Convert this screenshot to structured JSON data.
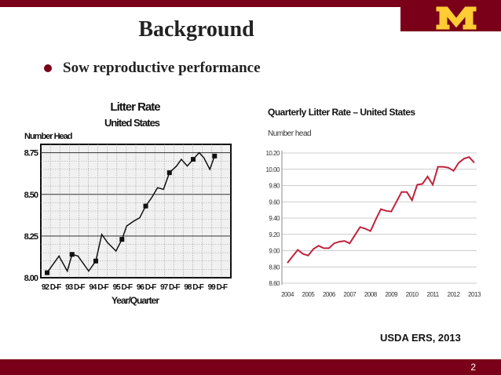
{
  "slide": {
    "title": "Background",
    "bullet": "Sow reproductive performance",
    "source": "USDA ERS, 2013",
    "page_number": "2",
    "colors": {
      "maroon": "#7a0019",
      "gold": "#ffcc33",
      "series_red": "#c0223b"
    }
  },
  "chart_data": [
    {
      "type": "line",
      "title": "Litter Rate",
      "subtitle": "United States",
      "ylabel": "Number Head",
      "xlabel": "Year/Quarter",
      "ylim": [
        8.0,
        8.8
      ],
      "yticks": [
        8.0,
        8.25,
        8.5,
        8.75
      ],
      "ytick_labels": [
        "8.00",
        "8.25",
        "8.50",
        "8.75"
      ],
      "xtick_labels": [
        "92 D-F",
        "93 D-F",
        "94 D-F",
        "95 D-F",
        "96 D-F",
        "97 D-F",
        "98 D-F",
        "99 D-F"
      ],
      "grid": true,
      "series": [
        {
          "name": "Litter Rate",
          "x": [
            0,
            0.5,
            0.85,
            1.05,
            1.3,
            1.5,
            1.75,
            2.05,
            2.3,
            2.55,
            2.9,
            3.15,
            3.35,
            3.65,
            3.9,
            4.15,
            4.4,
            4.65,
            4.9,
            5.15,
            5.45,
            5.65,
            5.9,
            6.15,
            6.4,
            6.6,
            6.85,
            7.05
          ],
          "values": [
            8.03,
            8.13,
            8.04,
            8.14,
            8.13,
            8.09,
            8.04,
            8.1,
            8.26,
            8.21,
            8.16,
            8.23,
            8.31,
            8.34,
            8.36,
            8.43,
            8.48,
            8.54,
            8.53,
            8.63,
            8.67,
            8.71,
            8.67,
            8.71,
            8.75,
            8.72,
            8.65,
            8.73
          ]
        },
        {
          "name": "Markers",
          "x": [
            0,
            1.05,
            2.05,
            3.15,
            4.15,
            5.15,
            6.15,
            7.05
          ],
          "values": [
            8.03,
            8.14,
            8.1,
            8.23,
            8.43,
            8.63,
            8.71,
            8.73
          ]
        }
      ]
    },
    {
      "type": "line",
      "title": "Quarterly Litter Rate – United States",
      "ylabel": "Number head",
      "ylim": [
        8.6,
        10.2
      ],
      "yticks": [
        8.6,
        8.8,
        9.0,
        9.2,
        9.4,
        9.6,
        9.8,
        10.0,
        10.2
      ],
      "ytick_labels": [
        "8.60",
        "8.80",
        "9.00",
        "9.20",
        "9.40",
        "9.60",
        "9.80",
        "10.00",
        "10.20"
      ],
      "xtick_labels": [
        "2004",
        "2005",
        "2006",
        "2007",
        "2008",
        "2009",
        "2010",
        "2011",
        "2012",
        "2013"
      ],
      "grid": true,
      "series": [
        {
          "name": "Litter rate",
          "x": [
            2004.0,
            2004.25,
            2004.5,
            2004.75,
            2005.0,
            2005.25,
            2005.5,
            2005.75,
            2006.0,
            2006.25,
            2006.5,
            2006.75,
            2007.0,
            2007.25,
            2007.5,
            2007.75,
            2008.0,
            2008.25,
            2008.5,
            2008.75,
            2009.0,
            2009.25,
            2009.5,
            2009.75,
            2010.0,
            2010.25,
            2010.5,
            2010.75,
            2011.0,
            2011.25,
            2011.5,
            2011.75,
            2012.0,
            2012.25,
            2012.5,
            2012.75,
            2013.0
          ],
          "values": [
            8.85,
            8.93,
            9.01,
            8.96,
            8.94,
            9.02,
            9.06,
            9.03,
            9.03,
            9.09,
            9.11,
            9.12,
            9.09,
            9.19,
            9.29,
            9.27,
            9.24,
            9.38,
            9.51,
            9.49,
            9.48,
            9.6,
            9.72,
            9.72,
            9.62,
            9.81,
            9.82,
            9.91,
            9.81,
            10.03,
            10.03,
            10.02,
            9.98,
            10.08,
            10.13,
            10.15,
            10.08
          ]
        }
      ]
    }
  ]
}
